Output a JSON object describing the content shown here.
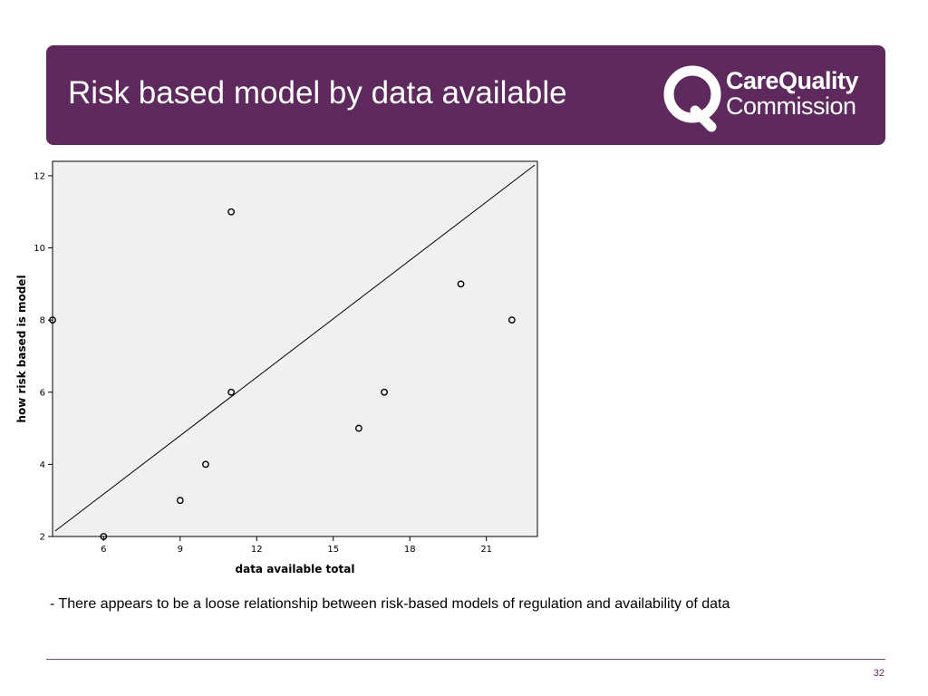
{
  "header": {
    "title": "Risk based model by data available",
    "logo": {
      "line1": "CareQuality",
      "line2": "Commission",
      "icon": "cqc-q-logo-icon"
    }
  },
  "chart_data": {
    "type": "scatter",
    "xlabel": "data available total",
    "ylabel": "how risk based is model",
    "xlim": [
      4,
      23
    ],
    "ylim": [
      2,
      12.4
    ],
    "xticks": [
      6,
      9,
      12,
      15,
      18,
      21
    ],
    "yticks": [
      2,
      4,
      6,
      8,
      10,
      12
    ],
    "grid": false,
    "series": [
      {
        "x": [
          4,
          6,
          9,
          10,
          11,
          11,
          16,
          17,
          20,
          22
        ],
        "y": [
          8,
          2,
          3,
          4,
          6,
          11,
          5,
          6,
          9,
          8
        ]
      }
    ],
    "fit_line": {
      "x": [
        4.1,
        22.9
      ],
      "y": [
        2.15,
        12.3
      ]
    },
    "colors": {
      "background": "#f0f0f0",
      "marker": "#000000",
      "line": "#000000"
    }
  },
  "caption": "- There appears to be a loose relationship between risk-based models of regulation and availability of data",
  "footer": {
    "page_number": "32"
  },
  "colors": {
    "brand_purple": "#5e2a5e"
  }
}
